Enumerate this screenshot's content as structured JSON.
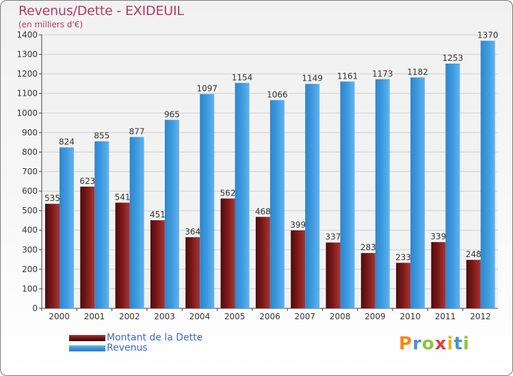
{
  "header": {
    "title": "Revenus/Dette - EXIDEUIL",
    "subtitle": "(en milliers d'€)"
  },
  "colors": {
    "dette": "#7a1818",
    "revenus": "#3d9be0",
    "title": "#b23a66",
    "legend_text": "#3c67d4"
  },
  "logo": {
    "text": "Proxiti",
    "letters": [
      {
        "ch": "P",
        "color": "#f28a1b"
      },
      {
        "ch": "r",
        "color": "#4a8fd4"
      },
      {
        "ch": "o",
        "color": "#8cc63e"
      },
      {
        "ch": "x",
        "color": "#e33d3d"
      },
      {
        "ch": "i",
        "color": "#f2b01b"
      },
      {
        "ch": "t",
        "color": "#4a8fd4"
      },
      {
        "ch": "i",
        "color": "#8cc63e"
      }
    ]
  },
  "chart_data": {
    "type": "bar",
    "categories": [
      "2000",
      "2001",
      "2002",
      "2003",
      "2004",
      "2005",
      "2006",
      "2007",
      "2008",
      "2009",
      "2010",
      "2011",
      "2012"
    ],
    "series": [
      {
        "name": "Montant de la Dette",
        "color": "#7a1818",
        "values": [
          535,
          623,
          541,
          451,
          364,
          562,
          468,
          399,
          337,
          283,
          233,
          339,
          248
        ]
      },
      {
        "name": "Revenus",
        "color": "#3d9be0",
        "values": [
          824,
          855,
          877,
          965,
          1097,
          1154,
          1066,
          1149,
          1161,
          1173,
          1182,
          1253,
          1370
        ]
      }
    ],
    "title": "Revenus/Dette - EXIDEUIL",
    "subtitle": "(en milliers d'€)",
    "ylim": [
      0,
      1400
    ],
    "yticks": [
      0,
      100,
      200,
      300,
      400,
      500,
      600,
      700,
      800,
      900,
      1000,
      1100,
      1200,
      1300,
      1400
    ],
    "grid": true,
    "legend_position": "bottom-left"
  }
}
